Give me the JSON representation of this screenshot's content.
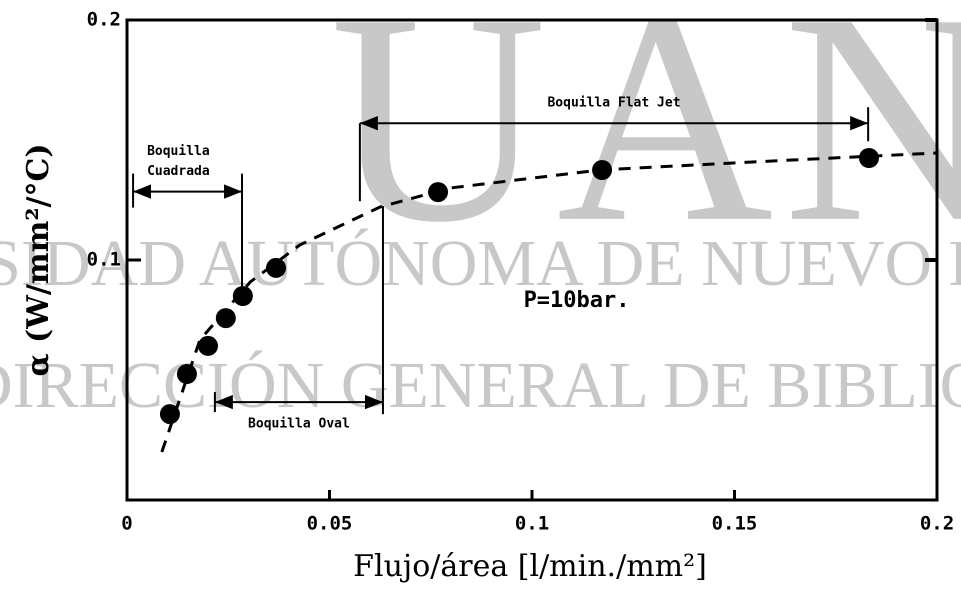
{
  "chart_data": {
    "type": "scatter",
    "watermark": {
      "letters": "UANL",
      "line1": "UNIVERSIDAD AUTÓNOMA DE NUEVO LEÓN",
      "line2": "DIRECCIÓN GENERAL DE BIBLIOTECAS"
    },
    "x_label": "Flujo/área  [l/min./mm²]",
    "y_label": "α  (W/mm²/°C)",
    "x": [
      0.0106,
      0.0148,
      0.02,
      0.0244,
      0.0286,
      0.0368,
      0.0768,
      0.1173,
      0.1832
    ],
    "values": [
      0.0358,
      0.0525,
      0.0642,
      0.0758,
      0.085,
      0.0967,
      0.1283,
      0.1375,
      0.1425
    ],
    "color": "#000000",
    "curve": {
      "x": [
        0.0086,
        0.018,
        0.0304,
        0.0427,
        0.0625,
        0.0798,
        0.1168,
        0.1538,
        0.2
      ],
      "values": [
        0.02,
        0.0667,
        0.0908,
        0.1063,
        0.1221,
        0.13,
        0.1375,
        0.1408,
        0.1446
      ]
    },
    "xlim": [
      0,
      0.2
    ],
    "xticks": [
      0,
      0.05,
      0.1,
      0.15,
      0.2
    ],
    "ylim": [
      0,
      0.2
    ],
    "yticks": [
      0.1,
      0.2
    ],
    "annotations": [
      {
        "text": [
          "Boquilla",
          "Cuadrada"
        ],
        "x": [
          0.0015,
          0.0284
        ],
        "y": 0.1285
      },
      {
        "text": [
          "Boquilla Flat Jet"
        ],
        "x": [
          0.0575,
          0.183
        ],
        "y": 0.157
      },
      {
        "text": [
          "Boquilla Oval"
        ],
        "x": [
          0.0217,
          0.0632
        ],
        "y": 0.0408
      }
    ],
    "note": "P=10bar.",
    "note_pos": [
      0.111,
      0.083
    ]
  }
}
